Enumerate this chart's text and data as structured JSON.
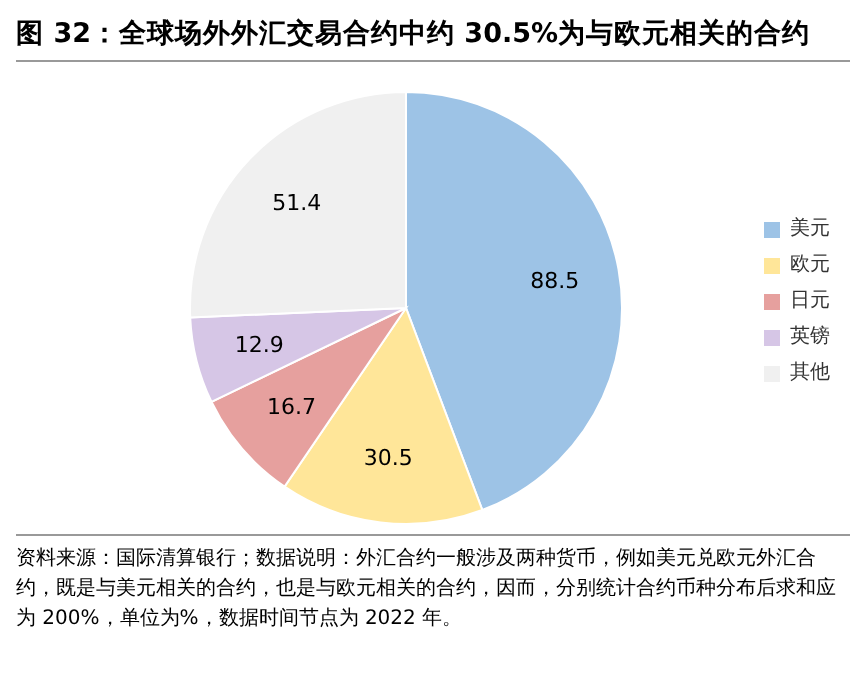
{
  "chart_data": {
    "type": "pie",
    "title": "图 32：全球场外外汇交易合约中约 30.5%为与欧元相关的合约",
    "categories": [
      "美元",
      "欧元",
      "日元",
      "英镑",
      "其他"
    ],
    "values": [
      88.5,
      30.5,
      16.7,
      12.9,
      51.4
    ],
    "colors": [
      "#9dc3e6",
      "#ffe699",
      "#e6a09e",
      "#d6c6e6",
      "#f0f0f0"
    ],
    "data_labels": true,
    "legend": "right",
    "annotations": [
      "资料来源：国际清算银行；数据说明：外汇合约一般涉及两种货币，例如美元兑欧元外汇合约，既是与美元相关的合约，也是与欧元相关的合约，因而，分别统计合约币种分布后求和应为 200%，单位为%，数据时间节点为 2022 年。"
    ]
  }
}
